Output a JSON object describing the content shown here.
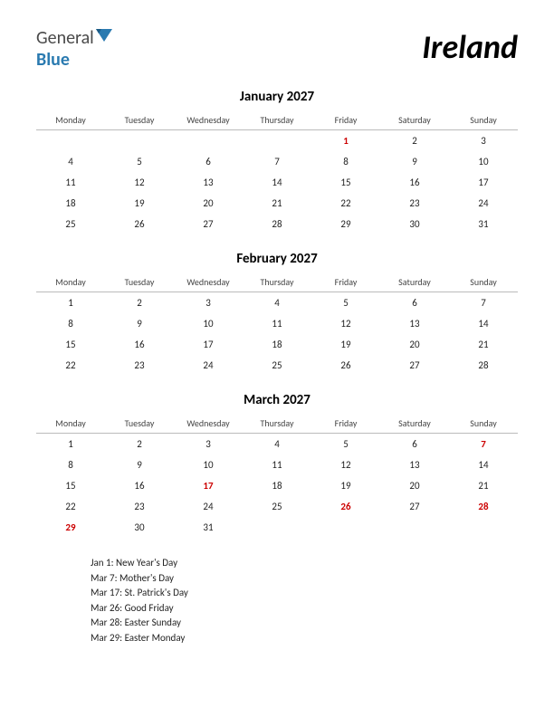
{
  "logo": {
    "general": "General",
    "blue": "Blue"
  },
  "country": "Ireland",
  "dayHeaders": [
    "Monday",
    "Tuesday",
    "Wednesday",
    "Thursday",
    "Friday",
    "Saturday",
    "Sunday"
  ],
  "months": [
    {
      "title": "January 2027",
      "holidayDays": [
        1
      ],
      "weeks": [
        [
          "",
          "",
          "",
          "",
          "1",
          "2",
          "3"
        ],
        [
          "4",
          "5",
          "6",
          "7",
          "8",
          "9",
          "10"
        ],
        [
          "11",
          "12",
          "13",
          "14",
          "15",
          "16",
          "17"
        ],
        [
          "18",
          "19",
          "20",
          "21",
          "22",
          "23",
          "24"
        ],
        [
          "25",
          "26",
          "27",
          "28",
          "29",
          "30",
          "31"
        ]
      ]
    },
    {
      "title": "February 2027",
      "holidayDays": [],
      "weeks": [
        [
          "1",
          "2",
          "3",
          "4",
          "5",
          "6",
          "7"
        ],
        [
          "8",
          "9",
          "10",
          "11",
          "12",
          "13",
          "14"
        ],
        [
          "15",
          "16",
          "17",
          "18",
          "19",
          "20",
          "21"
        ],
        [
          "22",
          "23",
          "24",
          "25",
          "26",
          "27",
          "28"
        ]
      ]
    },
    {
      "title": "March 2027",
      "holidayDays": [
        7,
        17,
        26,
        28,
        29
      ],
      "weeks": [
        [
          "1",
          "2",
          "3",
          "4",
          "5",
          "6",
          "7"
        ],
        [
          "8",
          "9",
          "10",
          "11",
          "12",
          "13",
          "14"
        ],
        [
          "15",
          "16",
          "17",
          "18",
          "19",
          "20",
          "21"
        ],
        [
          "22",
          "23",
          "24",
          "25",
          "26",
          "27",
          "28"
        ],
        [
          "29",
          "30",
          "31",
          "",
          "",
          "",
          ""
        ]
      ]
    }
  ],
  "holidays": [
    "Jan 1: New Year's Day",
    "Mar 7: Mother's Day",
    "Mar 17: St. Patrick's Day",
    "Mar 26: Good Friday",
    "Mar 28: Easter Sunday",
    "Mar 29: Easter Monday"
  ],
  "colors": {
    "holiday": "#cc0000",
    "text": "#222222",
    "background": "#ffffff",
    "logoBlue": "#2a7ab0",
    "logoGray": "#4a4a4a"
  }
}
